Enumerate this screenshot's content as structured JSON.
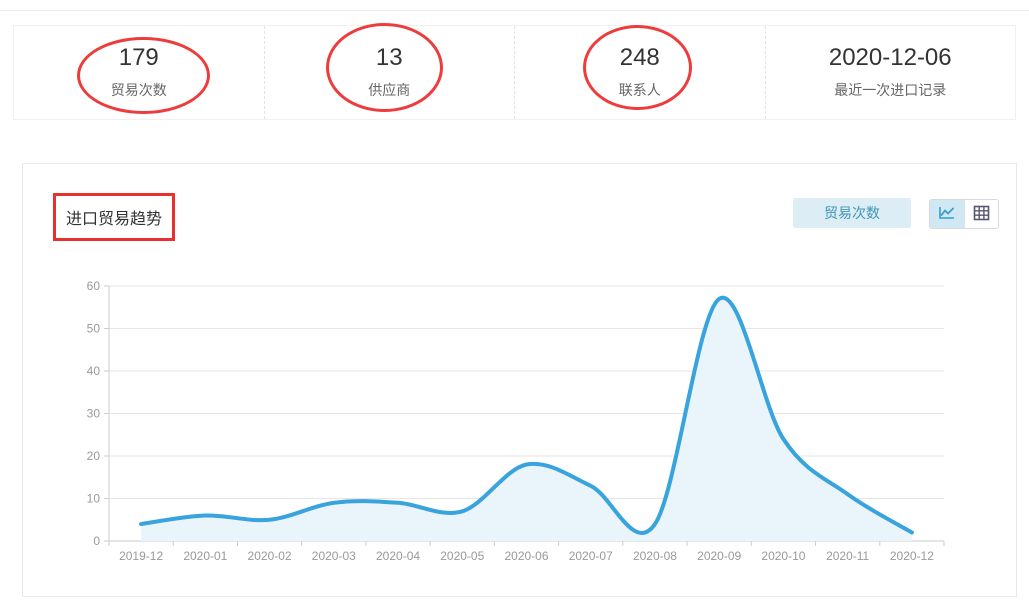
{
  "stats": {
    "items": [
      {
        "value": "179",
        "label": "贸易次数",
        "circled": true
      },
      {
        "value": "13",
        "label": "供应商",
        "circled": true
      },
      {
        "value": "248",
        "label": "联系人",
        "circled": true
      },
      {
        "value": "2020-12-06",
        "label": "最近一次进口记录",
        "circled": false
      }
    ]
  },
  "chart_card": {
    "title": "进口贸易趋势",
    "series_button_label": "贸易次数",
    "view_toggle": {
      "active": "line",
      "options": [
        "line-chart-icon",
        "table-icon"
      ]
    }
  },
  "chart_data": {
    "type": "area",
    "title": "进口贸易趋势",
    "categories": [
      "2019-12",
      "2020-01",
      "2020-02",
      "2020-03",
      "2020-04",
      "2020-05",
      "2020-06",
      "2020-07",
      "2020-08",
      "2020-09",
      "2020-10",
      "2020-11",
      "2020-12"
    ],
    "series": [
      {
        "name": "贸易次数",
        "values": [
          4,
          6,
          5,
          9,
          9,
          7,
          18,
          13,
          4,
          57,
          24,
          11,
          2
        ]
      }
    ],
    "xlabel": "",
    "ylabel": "",
    "ylim": [
      0,
      60
    ],
    "yticks": [
      0,
      10,
      20,
      30,
      40,
      50,
      60
    ],
    "grid": true,
    "legend_position": "none",
    "smooth": true
  },
  "colors": {
    "annotation_red": "#ee3b3b",
    "line_blue": "#38a3dc",
    "area_fill": "#eaf5fb",
    "grid_line": "#e6e6e6",
    "axis_line": "#cccccc",
    "tick_label": "#999999",
    "button_bg": "#dcedf6",
    "button_text": "#4295b5",
    "toggle_active_bg": "#cfe8f3"
  }
}
